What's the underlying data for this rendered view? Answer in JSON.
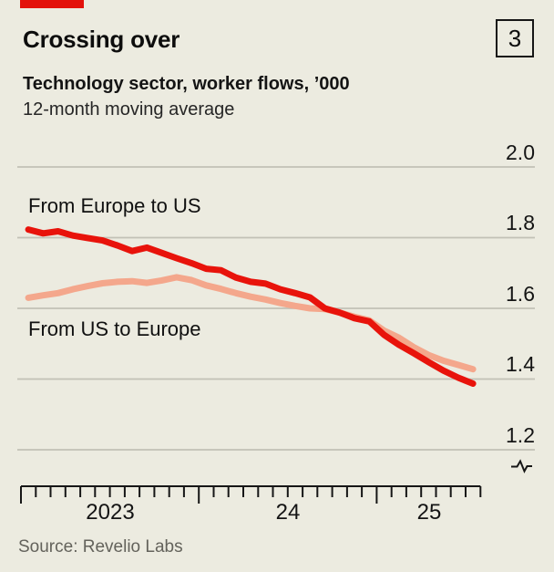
{
  "header": {
    "title": "Crossing over",
    "figure_number": "3",
    "subtitle": "Technology sector, worker flows, ’000",
    "note": "12-month moving average"
  },
  "source": "Source: Revelio Labs",
  "chart_data": {
    "type": "line",
    "title": "Crossing over",
    "subtitle": "Technology sector, worker flows, ’000",
    "note": "12-month moving average",
    "grid": "horizontal",
    "legend_position": "inline-labels",
    "x": [
      "2023-01",
      "2023-02",
      "2023-03",
      "2023-04",
      "2023-05",
      "2023-06",
      "2023-07",
      "2023-08",
      "2023-09",
      "2023-10",
      "2023-11",
      "2023-12",
      "2024-01",
      "2024-02",
      "2024-03",
      "2024-04",
      "2024-05",
      "2024-06",
      "2024-07",
      "2024-08",
      "2024-09",
      "2024-10",
      "2024-11",
      "2024-12",
      "2025-01",
      "2025-02",
      "2025-03",
      "2025-04",
      "2025-05",
      "2025-06",
      "2025-07"
    ],
    "series": [
      {
        "name": "From Europe to US",
        "color": "#E8130B",
        "values": [
          1.823,
          1.812,
          1.818,
          1.806,
          1.799,
          1.792,
          1.778,
          1.762,
          1.772,
          1.757,
          1.742,
          1.728,
          1.712,
          1.708,
          1.687,
          1.675,
          1.67,
          1.654,
          1.643,
          1.631,
          1.6,
          1.588,
          1.572,
          1.563,
          1.525,
          1.497,
          1.473,
          1.448,
          1.424,
          1.404,
          1.387
        ]
      },
      {
        "name": "From US to Europe",
        "color": "#F4A78C",
        "values": [
          1.63,
          1.637,
          1.643,
          1.654,
          1.663,
          1.671,
          1.675,
          1.677,
          1.672,
          1.679,
          1.688,
          1.68,
          1.665,
          1.655,
          1.643,
          1.633,
          1.625,
          1.615,
          1.607,
          1.6,
          1.598,
          1.588,
          1.576,
          1.566,
          1.537,
          1.517,
          1.49,
          1.468,
          1.452,
          1.44,
          1.428
        ]
      }
    ],
    "y_ticks": [
      {
        "value": 2.0,
        "label": "2.0"
      },
      {
        "value": 1.8,
        "label": "1.8"
      },
      {
        "value": 1.6,
        "label": "1.6"
      },
      {
        "value": 1.4,
        "label": "1.4"
      },
      {
        "value": 1.2,
        "label": "1.2"
      }
    ],
    "x_year_labels": [
      {
        "label": "2023"
      },
      {
        "label": "24"
      },
      {
        "label": "25"
      }
    ],
    "x_axis": {
      "start": "2023-01",
      "end": "2025-08",
      "minor_tick": "monthly",
      "major_tick": "yearly"
    },
    "ylim_shown": [
      1.2,
      2.0
    ],
    "has_axis_break_marker": true
  }
}
